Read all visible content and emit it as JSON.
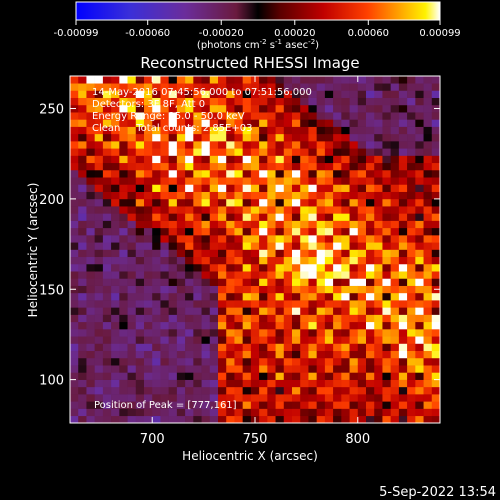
{
  "colorbar": {
    "tick_labels": [
      "-0.00099",
      "-0.00060",
      "-0.00020",
      "0.00020",
      "0.00060",
      "0.00099"
    ],
    "tick_values": [
      -0.00099,
      -0.0006,
      -0.0002,
      0.0002,
      0.0006,
      0.00099
    ],
    "units_main": "(photons cm",
    "units_exp1": "-2",
    "units_mid1": " s",
    "units_exp2": "-1",
    "units_mid2": " asec",
    "units_exp3": "-2",
    "units_end": ")",
    "range": [
      -0.00099,
      0.00099
    ],
    "palette": [
      "#0000ff",
      "#3a2bd6",
      "#6a2a9a",
      "#7a1e58",
      "#000000",
      "#7a0000",
      "#c40000",
      "#ff3b00",
      "#ff9a00",
      "#ffe300",
      "#ffffff"
    ]
  },
  "chart_data": {
    "type": "heatmap",
    "title": "Reconstructed RHESSI Image",
    "xlabel": "Heliocentric X (arcsec)",
    "ylabel": "Heliocentric Y (arcsec)",
    "xlim": [
      660,
      840
    ],
    "ylim": [
      76,
      268
    ],
    "xticks": [
      700,
      750,
      800
    ],
    "yticks": [
      100,
      150,
      200,
      250
    ],
    "xtick_labels": [
      "700",
      "750",
      "800"
    ],
    "ytick_labels": [
      "100",
      "150",
      "200",
      "250"
    ],
    "info_lines": [
      "14-May-2016 07:45:56.000 to 07:51:56.000",
      "Detectors: 3F 8F, Att 0",
      "Energy Range: 25.0 - 50.0 keV",
      "Clean     Total counts: 2.85E+03"
    ],
    "peak_label": "Position of Peak = [777,161]",
    "peak": [
      777,
      161
    ],
    "grid_spacing_arcsec": 4
  },
  "footer": {
    "date": "5-Sep-2022 13:54"
  }
}
